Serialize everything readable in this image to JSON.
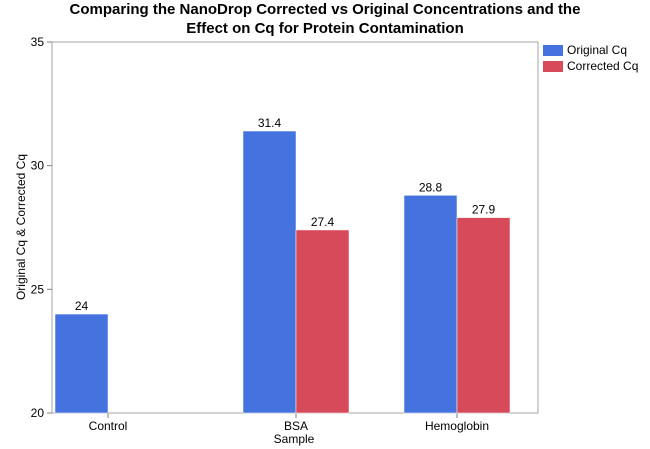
{
  "chart_data": {
    "type": "bar",
    "title_lines": [
      "Comparing the NanoDrop Corrected vs Original Concentrations and the",
      "Effect on Cq for Protein Contamination"
    ],
    "xlabel": "Sample",
    "ylabel": "Original Cq & Corrected Cq",
    "categories": [
      "Control",
      "BSA",
      "Hemoglobin"
    ],
    "series": [
      {
        "name": "Original Cq",
        "color": "#4472de",
        "values": [
          24,
          31.4,
          28.8
        ],
        "labels": [
          "24",
          "31.4",
          "28.8"
        ]
      },
      {
        "name": "Corrected Cq",
        "color": "#d64a59",
        "values": [
          null,
          27.4,
          27.9
        ],
        "labels": [
          null,
          "27.4",
          "27.9"
        ]
      }
    ],
    "ylim": [
      20,
      35
    ],
    "yticks": [
      20,
      25,
      30,
      35
    ],
    "legend_position": "top-right",
    "grid": false
  }
}
